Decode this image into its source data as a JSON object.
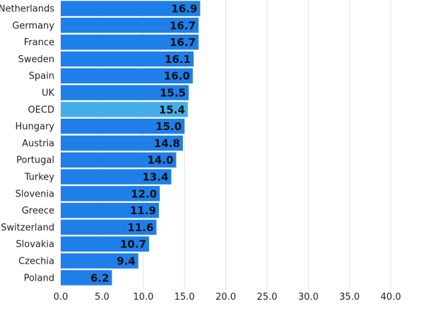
{
  "chart_data": {
    "type": "bar",
    "orientation": "horizontal",
    "categories": [
      "Netherlands",
      "Germany",
      "France",
      "Sweden",
      "Spain",
      "UK",
      "OECD",
      "Hungary",
      "Austria",
      "Portugal",
      "Turkey",
      "Slovenia",
      "Greece",
      "Switzerland",
      "Slovakia",
      "Czechia",
      "Poland"
    ],
    "values": [
      16.9,
      16.7,
      16.7,
      16.1,
      16.0,
      15.5,
      15.4,
      15.0,
      14.8,
      14.0,
      13.4,
      12.0,
      11.9,
      11.6,
      10.7,
      9.4,
      6.2
    ],
    "value_labels": [
      "16.9",
      "16.7",
      "16.7",
      "16.1",
      "16.0",
      "15.5",
      "15.4",
      "15.0",
      "14.8",
      "14.0",
      "13.4",
      "12.0",
      "11.9",
      "11.6",
      "10.7",
      "9.4",
      "6.2"
    ],
    "highlight": "OECD",
    "xlim": [
      0,
      40
    ],
    "xticks": [
      0,
      5,
      10,
      15,
      20,
      25,
      30,
      35,
      40
    ],
    "xtick_labels": [
      "0.0",
      "5.0",
      "10.0",
      "15.0",
      "20.0",
      "25.0",
      "30.0",
      "35.0",
      "40.0"
    ],
    "grid": "vertical",
    "colors": {
      "bar": "#1f7fe8",
      "highlight_bar": "#45aee6",
      "grid": "#e2e2e2",
      "label": "#222222",
      "value_label": "#111111"
    }
  }
}
